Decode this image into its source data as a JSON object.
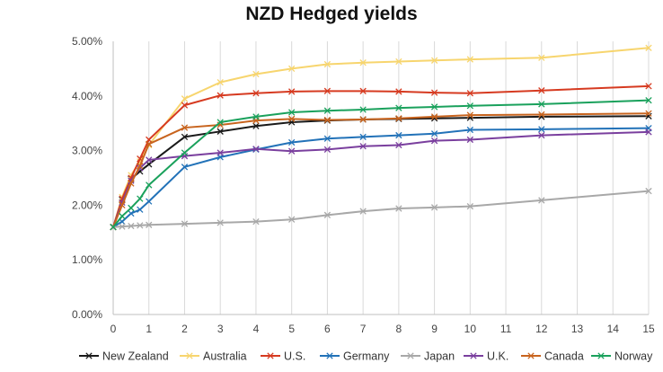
{
  "chart_data": {
    "type": "line",
    "title": "NZD Hedged yields",
    "xlabel": "",
    "ylabel": "",
    "x": [
      0,
      0.25,
      0.5,
      0.75,
      1,
      2,
      3,
      4,
      5,
      6,
      7,
      8,
      9,
      10,
      12,
      15
    ],
    "xticks": [
      0,
      1,
      2,
      3,
      4,
      5,
      6,
      7,
      8,
      9,
      10,
      11,
      12,
      13,
      14,
      15
    ],
    "xlim": [
      0,
      15
    ],
    "ylim": [
      0,
      0.05
    ],
    "yticks": [
      "0.00%",
      "1.00%",
      "2.00%",
      "3.00%",
      "4.00%",
      "5.00%"
    ],
    "grid": "vertical",
    "legend_position": "bottom",
    "series": [
      {
        "name": "New Zealand",
        "color": "#1a1a1a",
        "values": [
          0.016,
          0.021,
          0.0248,
          0.0262,
          0.0275,
          0.0325,
          0.0335,
          0.0345,
          0.0352,
          0.0355,
          0.0357,
          0.0358,
          0.0359,
          0.036,
          0.0362,
          0.0363
        ]
      },
      {
        "name": "Australia",
        "color": "#f7d56e",
        "values": [
          0.016,
          0.0215,
          0.0255,
          0.028,
          0.031,
          0.0395,
          0.0425,
          0.044,
          0.045,
          0.0458,
          0.0461,
          0.0463,
          0.0465,
          0.0467,
          0.047,
          0.0488
        ]
      },
      {
        "name": "U.S.",
        "color": "#d63a20",
        "values": [
          0.016,
          0.0212,
          0.025,
          0.0285,
          0.032,
          0.0383,
          0.0401,
          0.0405,
          0.0408,
          0.0409,
          0.0409,
          0.0408,
          0.0406,
          0.0405,
          0.041,
          0.0418
        ]
      },
      {
        "name": "Germany",
        "color": "#2272b8",
        "values": [
          0.016,
          0.017,
          0.0185,
          0.0192,
          0.0207,
          0.027,
          0.0288,
          0.0302,
          0.0315,
          0.0322,
          0.0325,
          0.0328,
          0.0331,
          0.0338,
          0.0339,
          0.0341
        ]
      },
      {
        "name": "Japan",
        "color": "#a8a8a8",
        "values": [
          0.016,
          0.0161,
          0.0162,
          0.0163,
          0.0164,
          0.0166,
          0.0168,
          0.017,
          0.0174,
          0.0182,
          0.0189,
          0.0194,
          0.0196,
          0.0198,
          0.0209,
          0.0226
        ]
      },
      {
        "name": "U.K.",
        "color": "#7a3f9e",
        "values": [
          0.016,
          0.0205,
          0.0245,
          0.0268,
          0.0283,
          0.029,
          0.0296,
          0.0303,
          0.0299,
          0.0302,
          0.0308,
          0.031,
          0.0318,
          0.032,
          0.0328,
          0.0334
        ]
      },
      {
        "name": "Canada",
        "color": "#c8641e",
        "values": [
          0.016,
          0.02,
          0.024,
          0.0272,
          0.0312,
          0.0342,
          0.0347,
          0.0355,
          0.0358,
          0.0356,
          0.0357,
          0.0359,
          0.0362,
          0.0365,
          0.0366,
          0.0368
        ]
      },
      {
        "name": "Norway",
        "color": "#1aa15c",
        "values": [
          0.016,
          0.018,
          0.0195,
          0.0212,
          0.0237,
          0.0296,
          0.0352,
          0.0362,
          0.037,
          0.0373,
          0.0375,
          0.0378,
          0.038,
          0.0382,
          0.0385,
          0.0392
        ]
      }
    ]
  }
}
